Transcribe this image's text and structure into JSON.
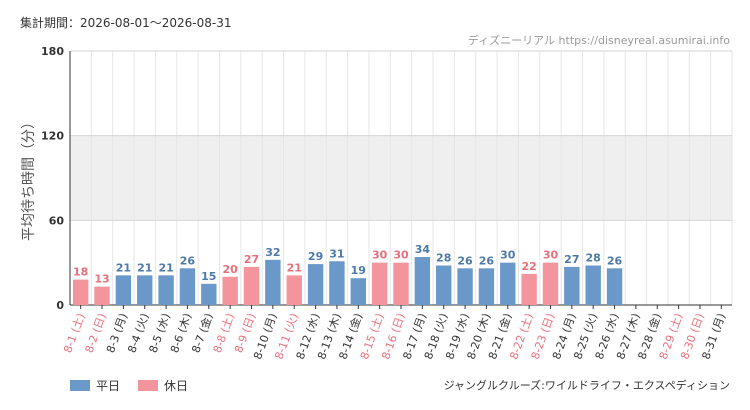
{
  "header": {
    "period_text": "集計期間：2026-08-01〜2026-08-31",
    "source_text": "ディズニーリアル https://disneyreal.asumirai.info"
  },
  "footer": {
    "attraction_name": "ジャングルクルーズ:ワイルドライフ・エクスペディション"
  },
  "legend": {
    "items": [
      {
        "label": "平日",
        "color": "#6a98c8"
      },
      {
        "label": "休日",
        "color": "#f4949c"
      }
    ]
  },
  "colors": {
    "weekday_bar": "#6a98c8",
    "holiday_bar": "#f4949c",
    "weekday_text": "#4d7aa9",
    "holiday_text": "#e8707c",
    "label_text": "#333333",
    "band": "#efefef",
    "grid": "#e6e6e6"
  },
  "chart_data": {
    "type": "bar",
    "ylabel": "平均待ち時間（分）",
    "ylim": [
      0,
      180
    ],
    "yticks": [
      0,
      60,
      120,
      180
    ],
    "shaded_band": [
      60,
      120
    ],
    "categories": [
      "8-1 (土)",
      "8-2 (日)",
      "8-3 (月)",
      "8-4 (火)",
      "8-5 (水)",
      "8-6 (木)",
      "8-7 (金)",
      "8-8 (土)",
      "8-9 (日)",
      "8-10 (月)",
      "8-11 (火)",
      "8-12 (水)",
      "8-13 (木)",
      "8-14 (金)",
      "8-15 (土)",
      "8-16 (日)",
      "8-17 (月)",
      "8-18 (火)",
      "8-19 (水)",
      "8-20 (木)",
      "8-21 (金)",
      "8-22 (土)",
      "8-23 (日)",
      "8-24 (月)",
      "8-25 (火)",
      "8-26 (水)",
      "8-27 (木)",
      "8-28 (金)",
      "8-29 (土)",
      "8-30 (日)",
      "8-31 (月)"
    ],
    "values": [
      18,
      13,
      21,
      21,
      21,
      26,
      15,
      20,
      27,
      32,
      21,
      29,
      31,
      19,
      30,
      30,
      34,
      28,
      26,
      26,
      30,
      22,
      30,
      27,
      28,
      26,
      null,
      null,
      null,
      null,
      null
    ],
    "holiday": [
      true,
      true,
      false,
      false,
      false,
      false,
      false,
      true,
      true,
      false,
      true,
      false,
      false,
      false,
      true,
      true,
      false,
      false,
      false,
      false,
      false,
      true,
      true,
      false,
      false,
      false,
      false,
      false,
      true,
      true,
      false
    ]
  }
}
